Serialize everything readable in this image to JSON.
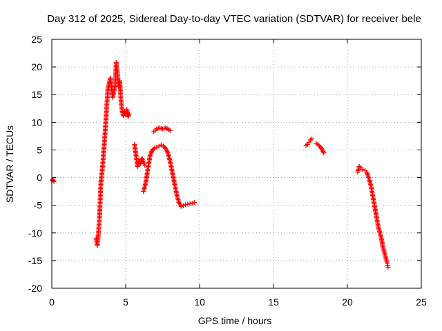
{
  "chart_data": {
    "type": "scatter",
    "title": "Day 312 of 2025, Sidereal Day-to-day VTEC variation (SDTVAR) for receiver bele",
    "xlabel": "GPS time / hours",
    "ylabel": "SDTVAR / TECUs",
    "xlim": [
      0,
      25
    ],
    "ylim": [
      -20,
      25
    ],
    "x_ticks": [
      0,
      5,
      10,
      15,
      20,
      25
    ],
    "y_ticks": [
      -20,
      -15,
      -10,
      -5,
      0,
      5,
      10,
      15,
      20,
      25
    ],
    "x_tick_labels": [
      "0",
      "5",
      "10",
      "15",
      "20",
      "25"
    ],
    "y_tick_labels": [
      "-20",
      "-15",
      "-10",
      "-5",
      "0",
      "5",
      "10",
      "15",
      "20",
      "25"
    ],
    "grid": true,
    "marker": "+",
    "color": "#ff0000",
    "series": [
      {
        "name": "SDTVAR",
        "segments": [
          {
            "x": [
              0.0,
              0.05,
              0.1,
              0.15
            ],
            "y": [
              -0.6,
              -0.4,
              -0.5,
              -0.7
            ]
          },
          {
            "x": [
              3.0,
              3.08,
              3.16,
              3.24,
              3.32,
              3.4,
              3.48,
              3.56,
              3.64,
              3.72,
              3.8,
              3.88,
              3.96,
              4.04,
              4.12,
              4.2,
              4.28,
              4.36,
              4.44,
              4.52,
              4.6,
              4.68,
              4.76,
              4.84,
              4.92,
              5.0,
              5.08,
              5.16,
              5.24
            ],
            "y": [
              -11.0,
              -12.3,
              -10.0,
              -6.5,
              -1.0,
              1.0,
              3.5,
              6.5,
              9.5,
              13.0,
              16.0,
              17.0,
              18.0,
              16.5,
              14.5,
              15.5,
              16.5,
              20.8,
              19.0,
              16.5,
              17.5,
              14.0,
              12.0,
              11.2,
              12.0,
              11.3,
              12.3,
              11.0,
              11.5
            ]
          },
          {
            "x": [
              5.6,
              5.7,
              5.8,
              5.9,
              6.0,
              6.1,
              6.2,
              6.3
            ],
            "y": [
              6.0,
              4.0,
              2.0,
              3.0,
              2.5,
              3.5,
              2.8,
              2.2
            ]
          },
          {
            "x": [
              6.2,
              6.35,
              6.5,
              6.65,
              6.8,
              6.95,
              7.1,
              7.25,
              7.4,
              7.55,
              7.7,
              7.85,
              8.0,
              8.15,
              8.3,
              8.45,
              8.6,
              8.75,
              8.9,
              9.05,
              9.2,
              9.35,
              9.5,
              9.65
            ],
            "y": [
              -2.5,
              -1.0,
              1.5,
              4.0,
              5.0,
              5.3,
              5.5,
              5.7,
              5.9,
              5.7,
              5.3,
              4.5,
              3.0,
              1.0,
              -1.0,
              -3.0,
              -4.5,
              -5.2,
              -5.1,
              -4.9,
              -4.8,
              -4.7,
              -4.6,
              -4.5
            ]
          },
          {
            "x": [
              6.9,
              7.1,
              7.3,
              7.5,
              7.7,
              7.9,
              8.0
            ],
            "y": [
              8.3,
              8.8,
              9.0,
              8.8,
              9.0,
              8.7,
              8.5
            ]
          },
          {
            "x": [
              17.2,
              17.3,
              17.4,
              17.5,
              17.6
            ],
            "y": [
              5.8,
              6.0,
              6.4,
              6.8,
              7.0
            ]
          },
          {
            "x": [
              17.9,
              18.0,
              18.1,
              18.2,
              18.3,
              18.4
            ],
            "y": [
              6.2,
              6.0,
              5.7,
              5.5,
              5.0,
              4.5
            ]
          },
          {
            "x": [
              20.7,
              20.8,
              20.9,
              21.0
            ],
            "y": [
              1.0,
              2.0,
              1.8,
              1.5
            ]
          },
          {
            "x": [
              21.2,
              21.3,
              21.4,
              21.5,
              21.6,
              21.7,
              21.8,
              21.9,
              22.0,
              22.1,
              22.2,
              22.3,
              22.4,
              22.5,
              22.6,
              22.7,
              22.75
            ],
            "y": [
              1.3,
              1.0,
              0.3,
              -0.5,
              -1.5,
              -3.0,
              -4.5,
              -6.0,
              -7.5,
              -9.0,
              -10.0,
              -11.0,
              -12.5,
              -13.5,
              -14.5,
              -15.5,
              -16.2
            ]
          }
        ]
      }
    ]
  }
}
